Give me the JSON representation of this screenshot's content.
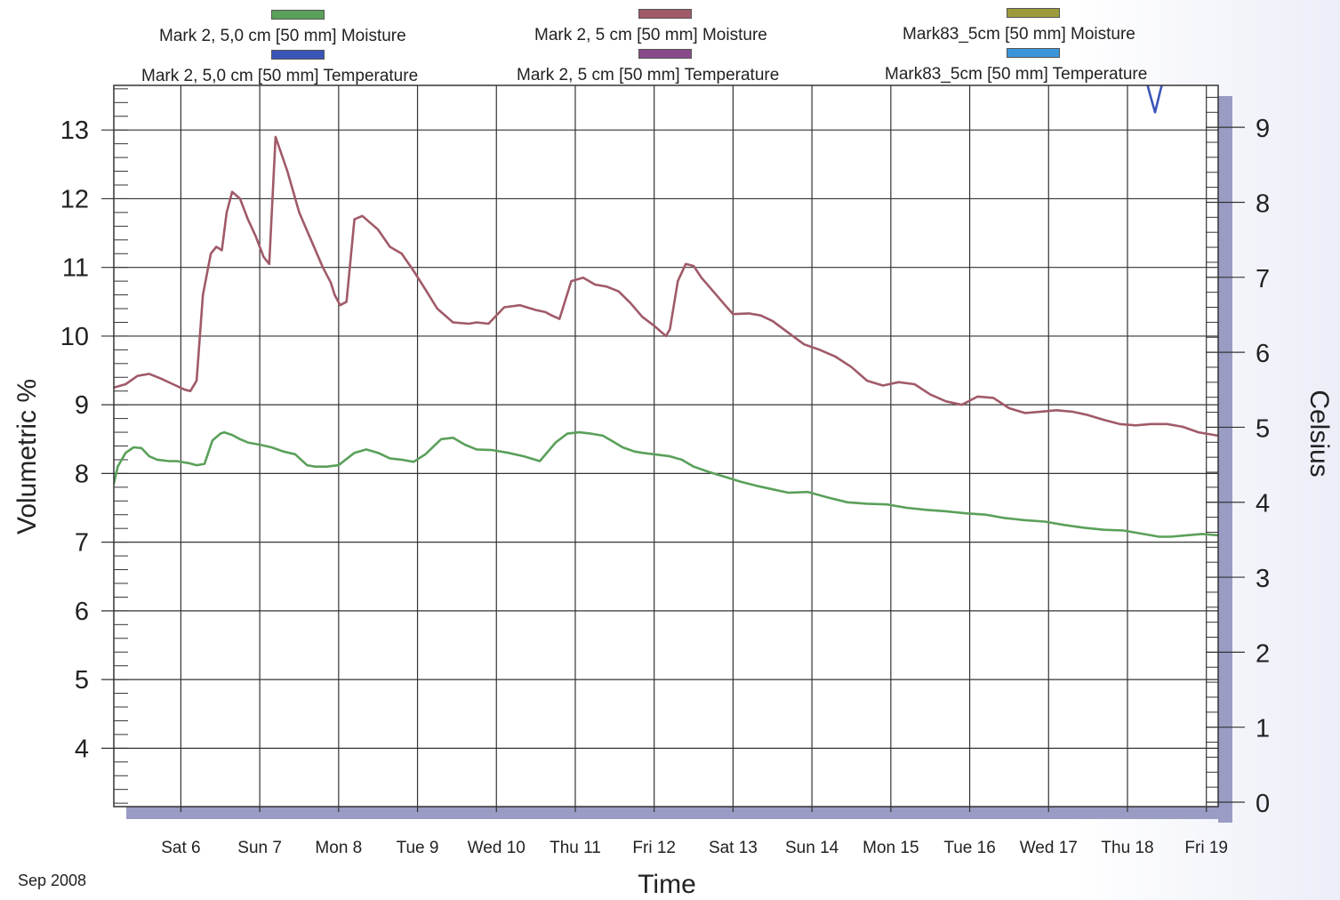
{
  "chart_data": {
    "type": "line",
    "xlabel": "Time",
    "ylabel": "Volumetric %",
    "y2label": "Celsius",
    "date_caption": "Sep 2008",
    "x_ticks": [
      "Sat 6",
      "Sun 7",
      "Mon 8",
      "Tue 9",
      "Wed 10",
      "Thu 11",
      "Fri 12",
      "Sat 13",
      "Sun 14",
      "Mon 15",
      "Tue 16",
      "Wed 17",
      "Thu 18",
      "Fri 19"
    ],
    "x_tick_days": [
      6,
      7,
      8,
      9,
      10,
      11,
      12,
      13,
      14,
      15,
      16,
      17,
      18,
      19
    ],
    "xlim": [
      5.15,
      19.15
    ],
    "y_ticks": [
      4,
      5,
      6,
      7,
      8,
      9,
      10,
      11,
      12,
      13
    ],
    "ylim": [
      3.15,
      13.65
    ],
    "y2_ticks": [
      0,
      1,
      2,
      3,
      4,
      5,
      6,
      7,
      8,
      9
    ],
    "y2lim": [
      0,
      9.5
    ],
    "grid": true,
    "legend_position": "top",
    "colors": {
      "green": "#5aa05a",
      "maroon": "#a05a68",
      "olive": "#9c9a3c",
      "blue": "#3a55b8",
      "purple": "#8a4a8a",
      "lightblue": "#3a96d8",
      "shadow": "#9a9cc4"
    },
    "series": [
      {
        "name": "Mark 2, 5,0 cm  [50 mm] Moisture",
        "color": "#5aa05a",
        "axis": "left",
        "x": [
          5.15,
          5.2,
          5.3,
          5.4,
          5.5,
          5.6,
          5.7,
          5.85,
          5.95,
          6.1,
          6.2,
          6.3,
          6.4,
          6.5,
          6.55,
          6.65,
          6.75,
          6.85,
          7.0,
          7.15,
          7.3,
          7.45,
          7.6,
          7.7,
          7.85,
          8.0,
          8.2,
          8.35,
          8.5,
          8.65,
          8.8,
          8.95,
          9.1,
          9.3,
          9.45,
          9.6,
          9.75,
          9.95,
          10.15,
          10.35,
          10.55,
          10.75,
          10.9,
          11.05,
          11.2,
          11.35,
          11.5,
          11.6,
          11.75,
          11.85,
          12.0,
          12.2,
          12.35,
          12.5,
          12.7,
          12.9,
          13.1,
          13.3,
          13.5,
          13.7,
          13.95,
          14.2,
          14.45,
          14.7,
          14.95,
          15.2,
          15.45,
          15.7,
          15.95,
          16.2,
          16.45,
          16.7,
          16.95,
          17.2,
          17.45,
          17.7,
          17.95,
          18.2,
          18.4,
          18.55,
          18.75,
          18.95,
          19.15
        ],
        "y": [
          7.85,
          8.1,
          8.3,
          8.38,
          8.37,
          8.25,
          8.2,
          8.18,
          8.18,
          8.15,
          8.12,
          8.14,
          8.48,
          8.58,
          8.6,
          8.56,
          8.5,
          8.45,
          8.42,
          8.38,
          8.32,
          8.28,
          8.12,
          8.1,
          8.1,
          8.12,
          8.3,
          8.35,
          8.3,
          8.22,
          8.2,
          8.17,
          8.28,
          8.5,
          8.52,
          8.42,
          8.35,
          8.34,
          8.3,
          8.25,
          8.18,
          8.45,
          8.58,
          8.6,
          8.58,
          8.55,
          8.45,
          8.38,
          8.32,
          8.3,
          8.28,
          8.25,
          8.2,
          8.1,
          8.02,
          7.95,
          7.88,
          7.82,
          7.77,
          7.72,
          7.73,
          7.65,
          7.58,
          7.56,
          7.55,
          7.5,
          7.47,
          7.45,
          7.42,
          7.4,
          7.35,
          7.32,
          7.3,
          7.25,
          7.21,
          7.18,
          7.17,
          7.12,
          7.08,
          7.08,
          7.1,
          7.12,
          7.1
        ]
      },
      {
        "name": "Mark 2, 5 cm  [50 mm] Moisture",
        "color": "#a05a68",
        "axis": "left",
        "x": [
          5.15,
          5.3,
          5.45,
          5.6,
          5.75,
          5.9,
          6.05,
          6.12,
          6.2,
          6.28,
          6.38,
          6.45,
          6.52,
          6.58,
          6.65,
          6.75,
          6.85,
          6.95,
          7.0,
          7.05,
          7.12,
          7.2,
          7.35,
          7.5,
          7.65,
          7.8,
          7.9,
          7.95,
          8.02,
          8.1,
          8.2,
          8.3,
          8.5,
          8.65,
          8.8,
          8.95,
          9.1,
          9.25,
          9.45,
          9.65,
          9.75,
          9.9,
          10.1,
          10.3,
          10.5,
          10.62,
          10.7,
          10.8,
          10.95,
          11.1,
          11.25,
          11.4,
          11.55,
          11.7,
          11.85,
          12.0,
          12.1,
          12.15,
          12.2,
          12.3,
          12.4,
          12.5,
          12.6,
          12.75,
          12.9,
          13.0,
          13.2,
          13.35,
          13.5,
          13.7,
          13.9,
          14.1,
          14.3,
          14.5,
          14.7,
          14.9,
          15.1,
          15.3,
          15.5,
          15.7,
          15.9,
          16.1,
          16.3,
          16.5,
          16.7,
          16.9,
          17.1,
          17.3,
          17.5,
          17.7,
          17.9,
          18.1,
          18.3,
          18.5,
          18.7,
          18.9,
          19.15
        ],
        "y": [
          9.25,
          9.3,
          9.42,
          9.45,
          9.38,
          9.3,
          9.22,
          9.2,
          9.35,
          10.6,
          11.2,
          11.3,
          11.25,
          11.8,
          12.1,
          12.0,
          11.7,
          11.45,
          11.3,
          11.15,
          11.05,
          12.9,
          12.4,
          11.8,
          11.4,
          11.0,
          10.78,
          10.6,
          10.45,
          10.5,
          11.7,
          11.75,
          11.55,
          11.3,
          11.2,
          10.95,
          10.68,
          10.4,
          10.2,
          10.18,
          10.2,
          10.18,
          10.42,
          10.45,
          10.38,
          10.35,
          10.3,
          10.25,
          10.8,
          10.85,
          10.75,
          10.72,
          10.65,
          10.48,
          10.28,
          10.15,
          10.05,
          10.0,
          10.1,
          10.8,
          11.05,
          11.02,
          10.85,
          10.65,
          10.45,
          10.32,
          10.33,
          10.3,
          10.22,
          10.05,
          9.88,
          9.8,
          9.7,
          9.55,
          9.35,
          9.28,
          9.33,
          9.3,
          9.15,
          9.05,
          9.0,
          9.12,
          9.1,
          8.95,
          8.88,
          8.9,
          8.92,
          8.9,
          8.85,
          8.78,
          8.72,
          8.7,
          8.72,
          8.72,
          8.68,
          8.6,
          8.55
        ]
      },
      {
        "name": "Mark83_5cm  [50 mm] Moisture",
        "color": "#9c9a3c",
        "axis": "left",
        "x": [],
        "y": []
      },
      {
        "name": "Mark 2, 5,0 cm  [50 mm] Temperature",
        "color": "#3a55b8",
        "axis": "right",
        "x": [
          18.2,
          18.27,
          18.35,
          18.42,
          18.5
        ],
        "y": [
          9.8,
          9.5,
          9.2,
          9.5,
          9.8
        ]
      },
      {
        "name": "Mark 2, 5 cm  [50 mm] Temperature",
        "color": "#8a4a8a",
        "axis": "right",
        "x": [],
        "y": []
      },
      {
        "name": "Mark83_5cm  [50 mm] Temperature",
        "color": "#3a96d8",
        "axis": "right",
        "x": [],
        "y": []
      }
    ]
  }
}
